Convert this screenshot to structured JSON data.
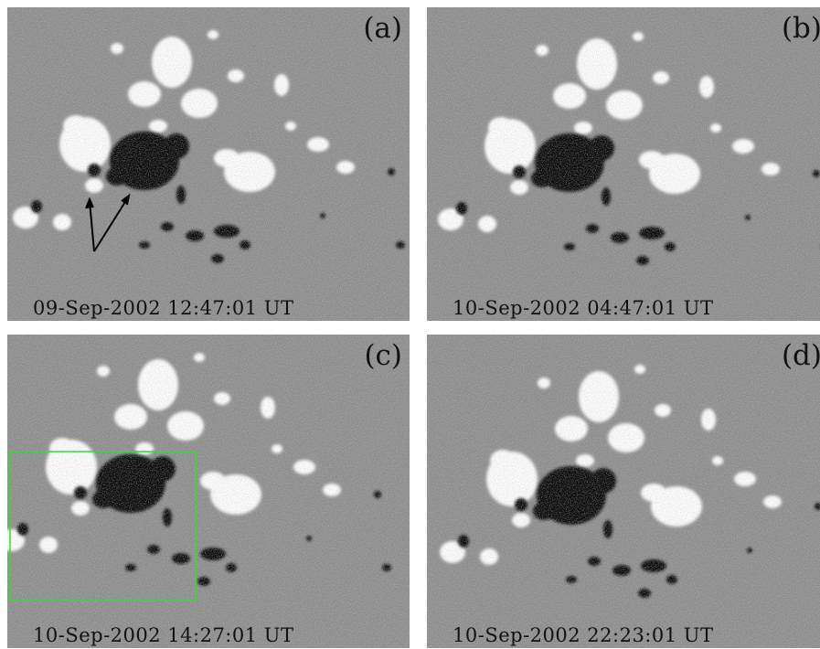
{
  "panels": [
    {
      "label": "(a)",
      "timestamp": "09-Sep-2002 12:47:01 UT"
    },
    {
      "label": "(b)",
      "timestamp": "10-Sep-2002 04:47:01 UT"
    },
    {
      "label": "(c)",
      "timestamp": "10-Sep-2002 14:27:01 UT"
    },
    {
      "label": "(d)",
      "timestamp": "10-Sep-2002 22:23:01 UT"
    }
  ],
  "colors": {
    "background": "#8a8a8a",
    "positive_polarity": "#ffffff",
    "negative_polarity": "#000000",
    "box": "#33dd33",
    "arrow": "#000000"
  }
}
